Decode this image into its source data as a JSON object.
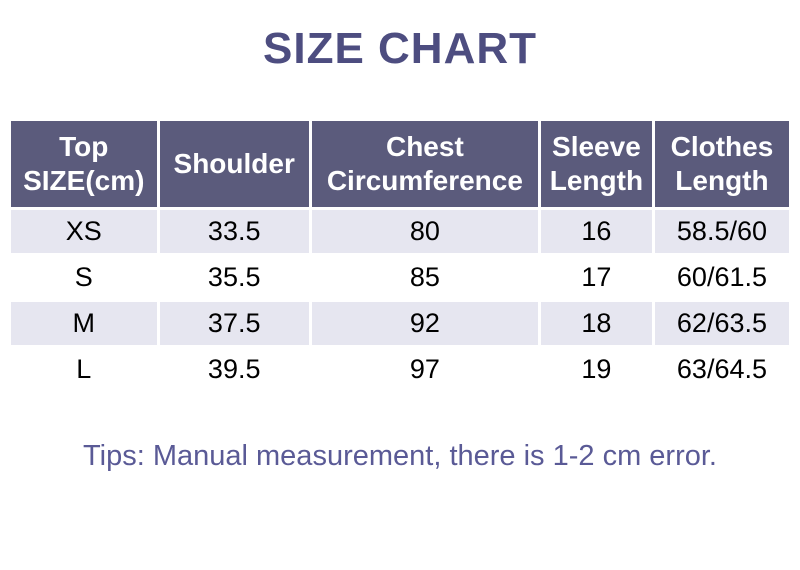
{
  "title": "SIZE CHART",
  "tip": "Tips: Manual measurement, there is 1-2 cm error.",
  "colors": {
    "title_text": "#4d4d80",
    "header_bg": "#5b5b7c",
    "header_text": "#ffffff",
    "row_alt_bg": "#e6e6f0",
    "row_bg": "#ffffff",
    "tip_text": "#5a5a96",
    "cell_text": "#000000"
  },
  "chart_data": {
    "type": "table",
    "title": "SIZE CHART",
    "columns": [
      "Top SIZE(cm)",
      "Shoulder",
      "Chest Circumference",
      "Sleeve Length",
      "Clothes Length"
    ],
    "rows": [
      [
        "XS",
        "33.5",
        "80",
        "16",
        "58.5/60"
      ],
      [
        "S",
        "35.5",
        "85",
        "17",
        "60/61.5"
      ],
      [
        "M",
        "37.5",
        "92",
        "18",
        "62/63.5"
      ],
      [
        "L",
        "39.5",
        "97",
        "19",
        "63/64.5"
      ]
    ],
    "note": "Tips: Manual measurement, there is 1-2 cm error."
  }
}
